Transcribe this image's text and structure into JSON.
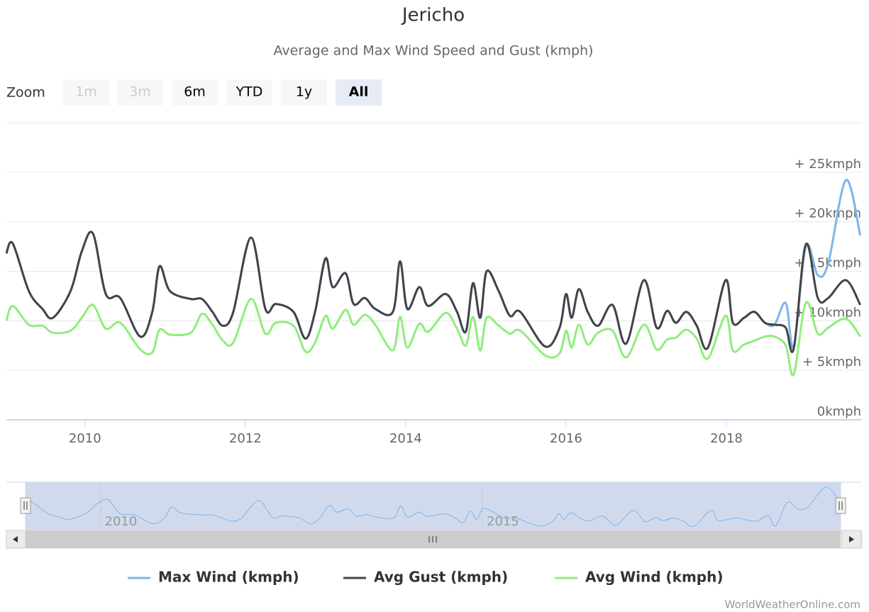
{
  "chart_data": {
    "type": "line",
    "title": "Jericho",
    "subtitle": "Average and Max Wind Speed and Gust (kmph)",
    "zoom": {
      "label": "Zoom",
      "buttons": [
        "1m",
        "3m",
        "6m",
        "YTD",
        "1y",
        "All"
      ],
      "disabled": [
        "1m",
        "3m"
      ],
      "selected": "All"
    },
    "x": [
      2009.02,
      2009.1,
      2009.3,
      2009.47,
      2009.6,
      2009.82,
      2009.96,
      2010.1,
      2010.26,
      2010.44,
      2010.69,
      2010.84,
      2010.93,
      2011.06,
      2011.32,
      2011.46,
      2011.59,
      2011.72,
      2011.85,
      2012.07,
      2012.25,
      2012.38,
      2012.6,
      2012.75,
      2012.87,
      2013.0,
      2013.09,
      2013.25,
      2013.35,
      2013.49,
      2013.62,
      2013.84,
      2013.93,
      2014.02,
      2014.17,
      2014.28,
      2014.5,
      2014.64,
      2014.75,
      2014.84,
      2014.93,
      2015.01,
      2015.16,
      2015.3,
      2015.43,
      2015.74,
      2015.92,
      2016.0,
      2016.07,
      2016.16,
      2016.27,
      2016.4,
      2016.58,
      2016.75,
      2016.97,
      2017.13,
      2017.26,
      2017.37,
      2017.5,
      2017.63,
      2017.77,
      2017.99,
      2018.08,
      2018.22,
      2018.35,
      2018.48,
      2018.6,
      2018.74,
      2018.84,
      2018.99,
      2019.14,
      2019.27,
      2019.49,
      2019.67
    ],
    "series": [
      {
        "name": "Max Wind (kmph)",
        "color": "#7cb5ec",
        "values": [
          16.8,
          17.8,
          13.0,
          11.2,
          10.3,
          13.0,
          17.0,
          18.8,
          12.7,
          12.3,
          8.4,
          10.9,
          15.5,
          13.0,
          12.2,
          12.2,
          10.9,
          9.5,
          10.9,
          18.4,
          11.2,
          11.7,
          10.9,
          8.2,
          10.9,
          16.3,
          13.4,
          14.8,
          11.7,
          12.3,
          11.2,
          10.9,
          16.0,
          11.2,
          13.4,
          11.5,
          12.7,
          10.9,
          8.9,
          13.8,
          10.3,
          15.0,
          13.0,
          10.5,
          10.9,
          7.4,
          9.3,
          12.7,
          10.3,
          13.2,
          10.9,
          9.5,
          11.6,
          7.7,
          14.1,
          9.3,
          11.0,
          9.8,
          10.9,
          9.5,
          7.3,
          14.1,
          9.8,
          10.3,
          10.9,
          9.8,
          9.6,
          11.8,
          7.4,
          17.5,
          14.6,
          15.8,
          24.2,
          18.6
        ]
      },
      {
        "name": "Avg Gust (kmph)",
        "color": "#434348",
        "values": [
          16.8,
          17.8,
          13.0,
          11.2,
          10.3,
          13.0,
          17.0,
          18.8,
          12.7,
          12.3,
          8.4,
          10.9,
          15.5,
          13.0,
          12.2,
          12.2,
          10.9,
          9.5,
          10.9,
          18.4,
          11.2,
          11.7,
          10.9,
          8.2,
          10.9,
          16.3,
          13.4,
          14.8,
          11.7,
          12.3,
          11.2,
          10.9,
          16.0,
          11.2,
          13.4,
          11.5,
          12.7,
          10.9,
          8.9,
          13.8,
          10.3,
          15.0,
          13.0,
          10.5,
          10.9,
          7.4,
          9.3,
          12.7,
          10.3,
          13.2,
          10.9,
          9.5,
          11.6,
          7.7,
          14.1,
          9.3,
          11.0,
          9.8,
          10.9,
          9.5,
          7.3,
          14.1,
          9.8,
          10.3,
          10.9,
          9.8,
          9.6,
          9.3,
          7.2,
          17.7,
          12.3,
          12.3,
          14.1,
          11.6
        ]
      },
      {
        "name": "Avg Wind (kmph)",
        "color": "#90ed7d",
        "values": [
          10.0,
          11.5,
          9.6,
          9.5,
          8.8,
          9.0,
          10.3,
          11.6,
          9.2,
          9.8,
          7.1,
          6.8,
          9.1,
          8.6,
          8.8,
          10.7,
          9.6,
          8.0,
          7.8,
          12.2,
          8.7,
          9.8,
          9.5,
          6.9,
          7.8,
          10.5,
          9.2,
          11.1,
          9.6,
          10.6,
          9.6,
          7.0,
          10.4,
          7.3,
          9.7,
          8.9,
          10.8,
          9.2,
          7.5,
          10.4,
          7.0,
          10.3,
          9.5,
          8.7,
          9.0,
          6.5,
          6.7,
          9.0,
          7.3,
          9.6,
          7.6,
          8.8,
          9.0,
          6.3,
          9.6,
          7.1,
          8.1,
          8.3,
          9.1,
          8.2,
          6.2,
          10.5,
          7.0,
          7.6,
          8.0,
          8.4,
          8.4,
          7.5,
          4.6,
          11.8,
          8.7,
          9.3,
          10.2,
          8.4
        ]
      }
    ],
    "xlim": [
      2009.02,
      2019.69
    ],
    "xticks": [
      2010,
      2012,
      2014,
      2016,
      2018
    ],
    "ylim": [
      0,
      30
    ],
    "yticks": [
      {
        "value": 0,
        "label": "0kmph"
      },
      {
        "value": 5,
        "label": "+ 5kmph"
      },
      {
        "value": 10,
        "label": "+ 10kmph"
      },
      {
        "value": 15,
        "label": "+ 15kmph"
      },
      {
        "value": 20,
        "label": "+ 20kmph"
      },
      {
        "value": 25,
        "label": "+ 25kmph"
      }
    ],
    "grid": true,
    "navigator_xticks": [
      2010,
      2015
    ],
    "legend": "bottom",
    "credits": "WorldWeatherOnline.com"
  }
}
